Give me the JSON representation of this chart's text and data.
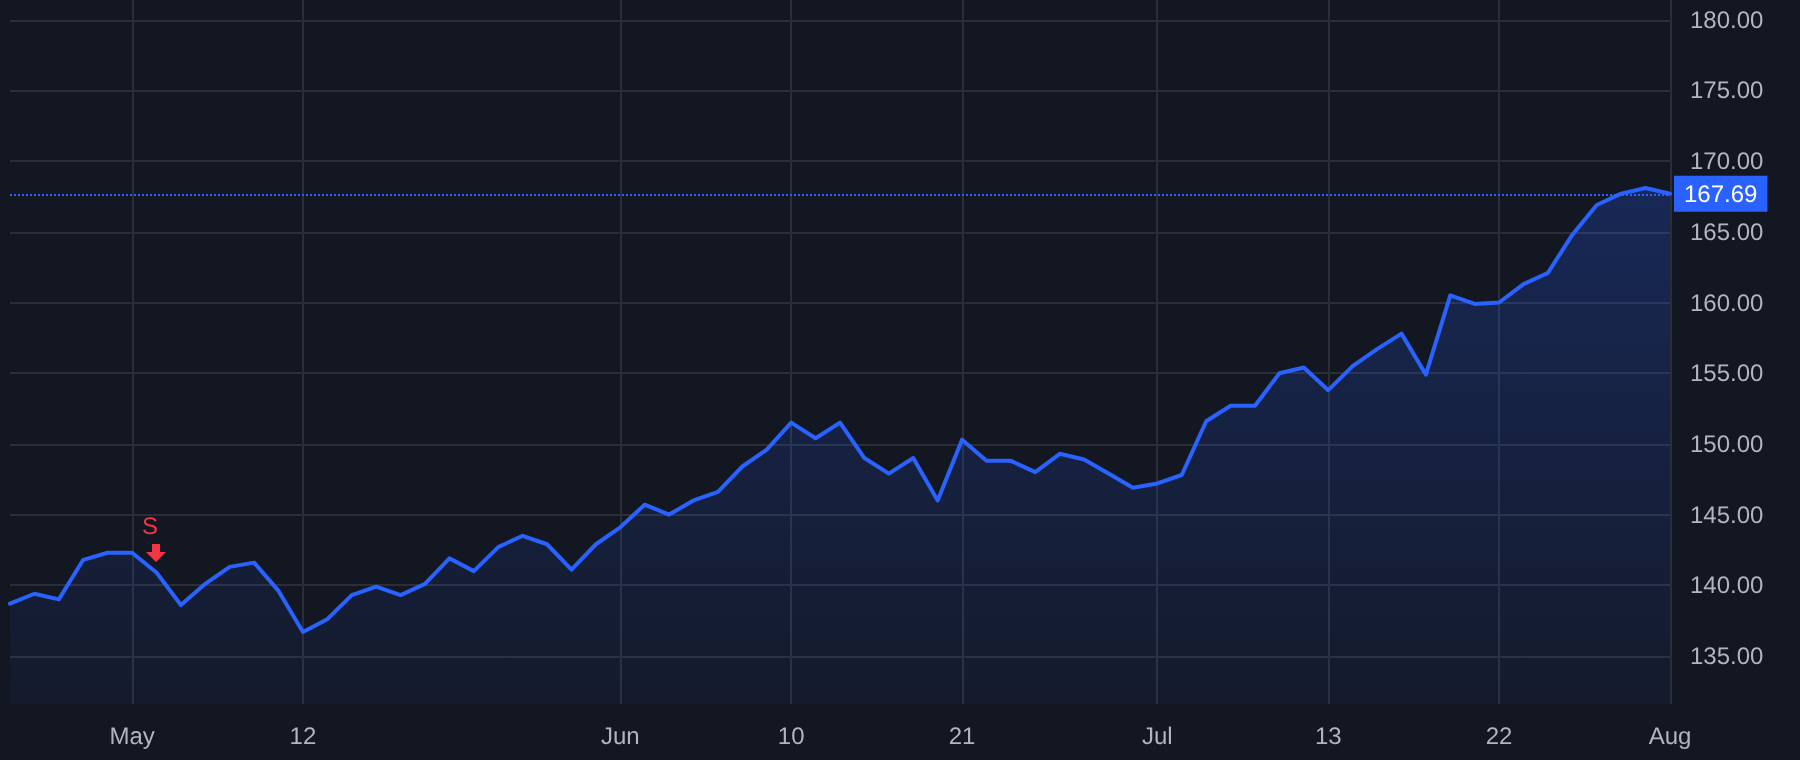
{
  "chart_data": {
    "type": "area",
    "categories": [
      null,
      null,
      null,
      null,
      null,
      "May",
      null,
      null,
      null,
      null,
      null,
      null,
      "12",
      null,
      null,
      null,
      null,
      null,
      null,
      null,
      null,
      null,
      null,
      null,
      null,
      "Jun",
      null,
      null,
      null,
      null,
      null,
      null,
      "10",
      null,
      null,
      null,
      null,
      null,
      null,
      "21",
      null,
      null,
      null,
      null,
      null,
      null,
      null,
      "Jul",
      null,
      null,
      null,
      null,
      null,
      null,
      "13",
      null,
      null,
      null,
      null,
      null,
      null,
      "22",
      null,
      null,
      null,
      null,
      null,
      null,
      "Aug"
    ],
    "series": [
      {
        "color": "#2962ff",
        "values": [
          138.7,
          139.4,
          139.0,
          141.8,
          142.3,
          142.3,
          140.9,
          138.6,
          140.1,
          141.3,
          141.6,
          139.6,
          136.7,
          137.6,
          139.3,
          139.9,
          139.3,
          140.1,
          141.9,
          141.0,
          142.7,
          143.5,
          142.9,
          141.1,
          142.9,
          144.1,
          145.7,
          145.0,
          146.0,
          146.6,
          148.4,
          149.6,
          151.5,
          150.4,
          151.5,
          149.0,
          147.9,
          149.0,
          146.0,
          150.3,
          148.8,
          148.8,
          148.0,
          149.3,
          148.9,
          147.9,
          146.9,
          147.2,
          147.8,
          151.6,
          152.7,
          152.7,
          155.0,
          155.4,
          153.8,
          155.5,
          156.7,
          157.8,
          154.9,
          160.5,
          159.9,
          160.0,
          161.3,
          162.1,
          164.8,
          166.9,
          167.7,
          168.1,
          167.69
        ]
      }
    ],
    "ylim": [
      131.6,
      181.4
    ],
    "yticks": [
      {
        "value": 135,
        "label": "135.00"
      },
      {
        "value": 140,
        "label": "140.00"
      },
      {
        "value": 145,
        "label": "145.00"
      },
      {
        "value": 150,
        "label": "150.00"
      },
      {
        "value": 155,
        "label": "155.00"
      },
      {
        "value": 160,
        "label": "160.00"
      },
      {
        "value": 165,
        "label": "165.00"
      },
      {
        "value": 170,
        "label": "170.00"
      },
      {
        "value": 175,
        "label": "175.00"
      },
      {
        "value": 180,
        "label": "180.00"
      }
    ],
    "grid": true,
    "marker": "none",
    "line_style": "solid",
    "ref_lines": [
      {
        "axis": "y",
        "value": 167.69,
        "label": "167.69",
        "color": "#2962ff",
        "line_style": "dotted"
      }
    ],
    "annotations": [
      {
        "text": "S"
      }
    ]
  }
}
